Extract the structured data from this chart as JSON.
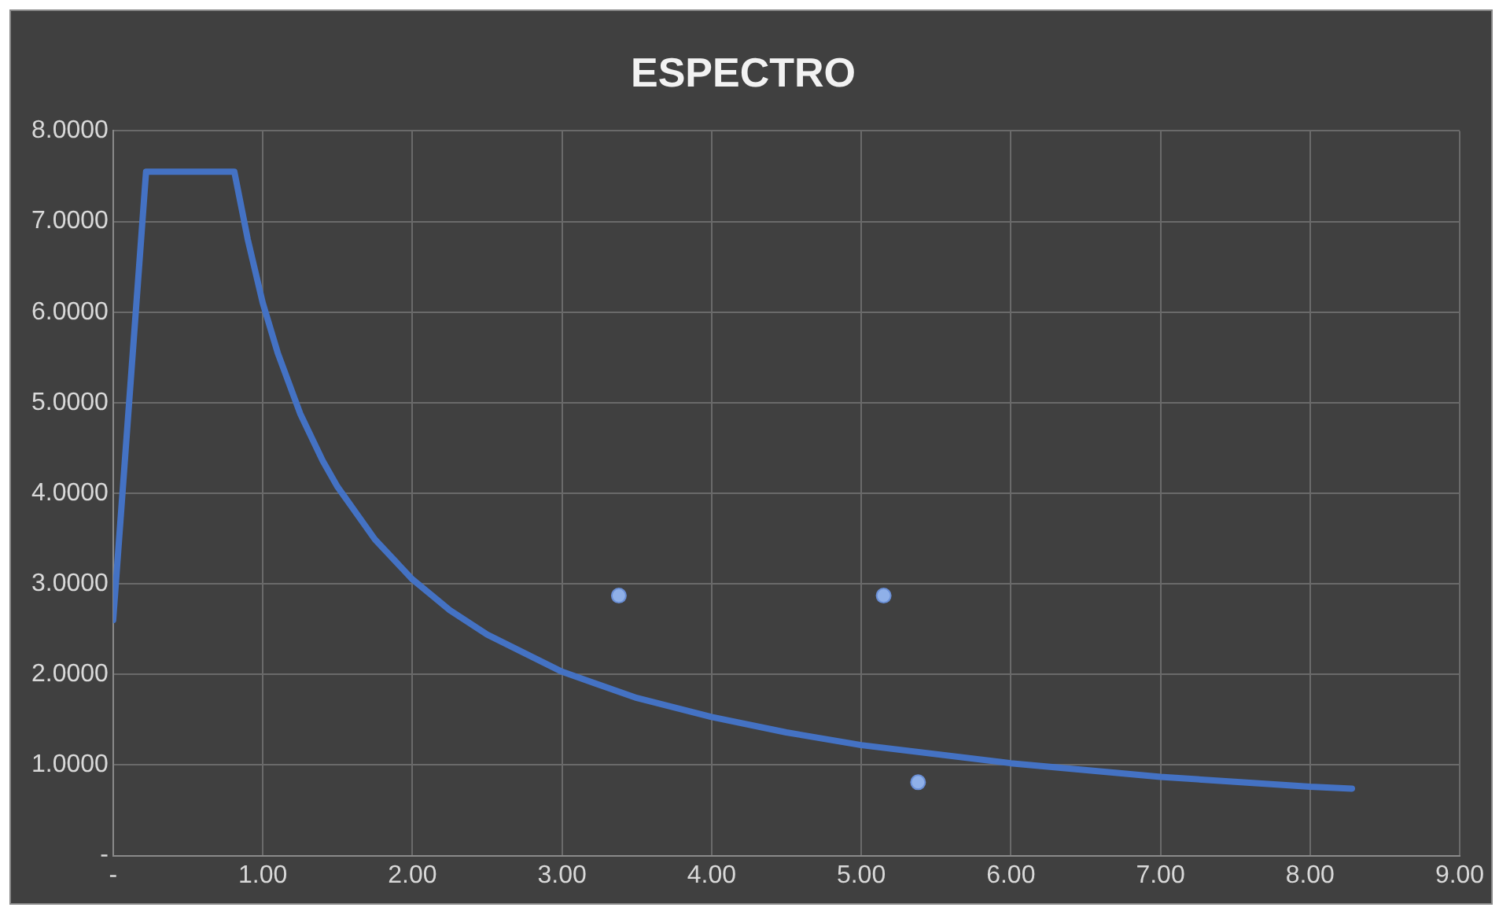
{
  "chart_data": {
    "type": "line",
    "title": "ESPECTRO",
    "series": [
      {
        "type": "line",
        "color": "#4472c4",
        "marker": "none",
        "x": [
          0,
          0.22,
          0.81,
          0.9,
          1,
          1.1,
          1.25,
          1.4,
          1.5,
          1.75,
          2,
          2.25,
          2.5,
          3,
          3.5,
          4,
          4.5,
          5,
          6,
          7,
          8,
          8.28
        ],
        "values": [
          2.6,
          7.55,
          7.55,
          6.8,
          6.1,
          5.55,
          4.88,
          4.36,
          4.07,
          3.49,
          3.05,
          2.71,
          2.44,
          2.03,
          1.74,
          1.53,
          1.36,
          1.22,
          1.02,
          0.87,
          0.76,
          0.74
        ]
      },
      {
        "type": "scatter",
        "color": "#8fb0e8",
        "marker": "circle",
        "x": [
          3.38,
          5.15,
          5.38
        ],
        "values": [
          2.87,
          2.87,
          0.81
        ]
      }
    ],
    "xlim": [
      0,
      9
    ],
    "xticks": [
      {
        "value": 0,
        "label": "-"
      },
      {
        "value": 1,
        "label": "1.00"
      },
      {
        "value": 2,
        "label": "2.00"
      },
      {
        "value": 3,
        "label": "3.00"
      },
      {
        "value": 4,
        "label": "4.00"
      },
      {
        "value": 5,
        "label": "5.00"
      },
      {
        "value": 6,
        "label": "6.00"
      },
      {
        "value": 7,
        "label": "7.00"
      },
      {
        "value": 8,
        "label": "8.00"
      },
      {
        "value": 9,
        "label": "9.00"
      }
    ],
    "ylim": [
      0,
      8
    ],
    "yticks": [
      {
        "value": 0,
        "label": "-"
      },
      {
        "value": 1,
        "label": "1.0000"
      },
      {
        "value": 2,
        "label": "2.0000"
      },
      {
        "value": 3,
        "label": "3.0000"
      },
      {
        "value": 4,
        "label": "4.0000"
      },
      {
        "value": 5,
        "label": "5.0000"
      },
      {
        "value": 6,
        "label": "6.0000"
      },
      {
        "value": 7,
        "label": "7.0000"
      },
      {
        "value": 8,
        "label": "8.0000"
      }
    ],
    "grid": true,
    "legend": false
  }
}
